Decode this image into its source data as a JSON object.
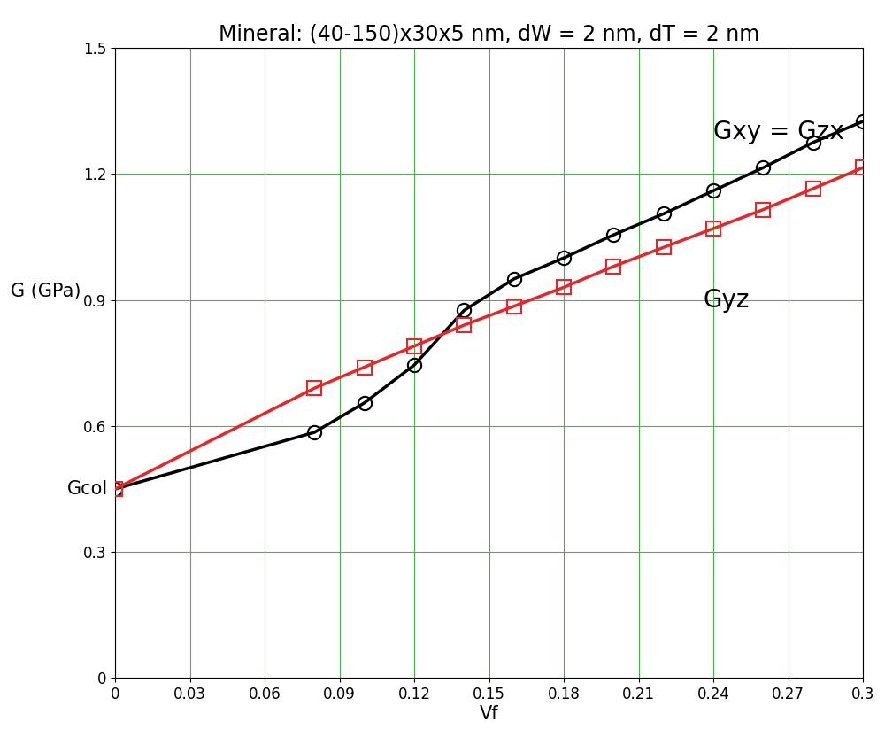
{
  "chart_data": {
    "type": "line",
    "title": "Mineral: (40-150)x30x5 nm, dW = 2 nm, dT = 2 nm",
    "x_label": "Vf",
    "y_label": "G (GPa)",
    "x": [
      0,
      0.08,
      0.1,
      0.12,
      0.14,
      0.16,
      0.18,
      0.2,
      0.22,
      0.24,
      0.26,
      0.28,
      0.3
    ],
    "series": [
      {
        "color": "#000000",
        "marker": "circle",
        "values": [
          0.45,
          0.585,
          0.655,
          0.745,
          0.875,
          0.95,
          1.0,
          1.055,
          1.105,
          1.16,
          1.215,
          1.275,
          1.325
        ]
      },
      {
        "color": "#e8262a",
        "marker": "square",
        "values": [
          0.45,
          0.69,
          0.74,
          0.79,
          0.84,
          0.885,
          0.93,
          0.98,
          1.025,
          1.07,
          1.115,
          1.165,
          1.215
        ]
      }
    ],
    "annotations": [
      {
        "text": "Gxy = Gzx",
        "x": 0.24,
        "y": 1.27
      },
      {
        "text": "Gyz",
        "x": 0.236,
        "y": 0.87
      },
      {
        "text": "Gcol",
        "x": 0,
        "y": 0.45
      }
    ],
    "xlim": [
      0,
      0.3
    ],
    "ylim": [
      0,
      1.5
    ],
    "xticks": [
      0,
      0.03,
      0.06,
      0.09,
      0.12,
      0.15,
      0.18,
      0.21,
      0.24,
      0.27,
      0.3
    ],
    "yticks": [
      0,
      0.3,
      0.6,
      0.9,
      1.2,
      1.5
    ],
    "grid": true
  }
}
